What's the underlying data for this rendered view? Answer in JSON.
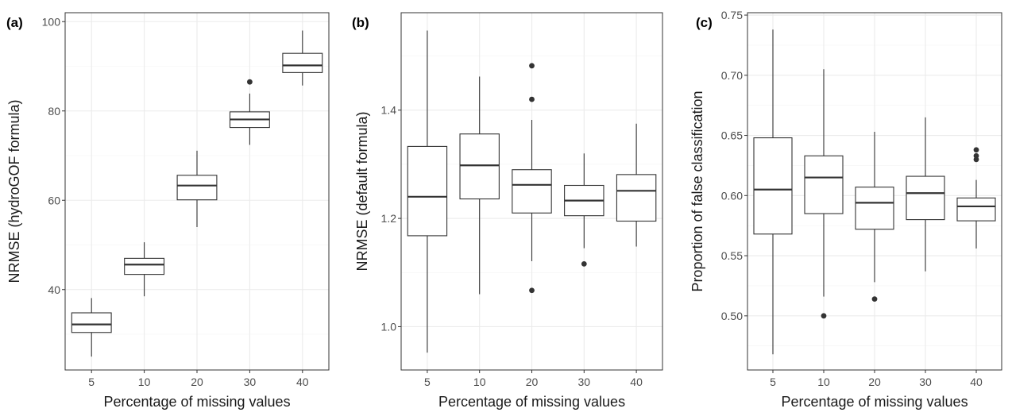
{
  "chart_data": [
    {
      "type": "box",
      "panel_label": "(a)",
      "title": "",
      "xlabel": "Percentage of missing values",
      "ylabel": "NRMSE (hydroGOF formula)",
      "categories": [
        "5",
        "10",
        "20",
        "30",
        "40"
      ],
      "ylim": [
        22,
        102
      ],
      "yticks": [
        40,
        60,
        80,
        100
      ],
      "ytick_labels": [
        "40",
        "60",
        "80",
        "100"
      ],
      "grid": true,
      "boxes": [
        {
          "category": "5",
          "min": 25.0,
          "q1": 30.4,
          "median": 32.2,
          "q3": 34.8,
          "max": 38.1,
          "outliers": []
        },
        {
          "category": "10",
          "min": 38.5,
          "q1": 43.4,
          "median": 45.6,
          "q3": 47.0,
          "max": 50.6,
          "outliers": []
        },
        {
          "category": "20",
          "min": 54.0,
          "q1": 60.1,
          "median": 63.3,
          "q3": 65.6,
          "max": 71.1,
          "outliers": []
        },
        {
          "category": "30",
          "min": 72.4,
          "q1": 76.3,
          "median": 78.1,
          "q3": 79.8,
          "max": 83.9,
          "outliers": [
            86.5
          ]
        },
        {
          "category": "40",
          "min": 85.7,
          "q1": 88.6,
          "median": 90.2,
          "q3": 92.9,
          "max": 98.0,
          "outliers": []
        }
      ]
    },
    {
      "type": "box",
      "panel_label": "(b)",
      "title": "",
      "xlabel": "Percentage of missing values",
      "ylabel": "NRMSE (default formula)",
      "categories": [
        "5",
        "10",
        "20",
        "30",
        "40"
      ],
      "ylim": [
        0.92,
        1.58
      ],
      "yticks": [
        1.0,
        1.2,
        1.4
      ],
      "ytick_labels": [
        "1.0",
        "1.2",
        "1.4"
      ],
      "grid": true,
      "boxes": [
        {
          "category": "5",
          "min": 0.952,
          "q1": 1.168,
          "median": 1.24,
          "q3": 1.333,
          "max": 1.547,
          "outliers": []
        },
        {
          "category": "10",
          "min": 1.06,
          "q1": 1.236,
          "median": 1.298,
          "q3": 1.356,
          "max": 1.462,
          "outliers": []
        },
        {
          "category": "20",
          "min": 1.121,
          "q1": 1.21,
          "median": 1.262,
          "q3": 1.29,
          "max": 1.382,
          "outliers": [
            1.067,
            1.42,
            1.482
          ]
        },
        {
          "category": "30",
          "min": 1.145,
          "q1": 1.205,
          "median": 1.233,
          "q3": 1.261,
          "max": 1.32,
          "outliers": [
            1.116
          ]
        },
        {
          "category": "40",
          "min": 1.148,
          "q1": 1.195,
          "median": 1.251,
          "q3": 1.281,
          "max": 1.375,
          "outliers": []
        }
      ]
    },
    {
      "type": "box",
      "panel_label": "(c)",
      "title": "",
      "xlabel": "Percentage of missing values",
      "ylabel": "Proportion of false classification",
      "categories": [
        "5",
        "10",
        "20",
        "30",
        "40"
      ],
      "ylim": [
        0.455,
        0.752
      ],
      "yticks": [
        0.5,
        0.55,
        0.6,
        0.65,
        0.7,
        0.75
      ],
      "ytick_labels": [
        "0.50",
        "0.55",
        "0.60",
        "0.65",
        "0.70",
        "0.75"
      ],
      "grid": true,
      "boxes": [
        {
          "category": "5",
          "min": 0.468,
          "q1": 0.568,
          "median": 0.605,
          "q3": 0.648,
          "max": 0.738,
          "outliers": []
        },
        {
          "category": "10",
          "min": 0.516,
          "q1": 0.585,
          "median": 0.615,
          "q3": 0.633,
          "max": 0.705,
          "outliers": [
            0.5
          ]
        },
        {
          "category": "20",
          "min": 0.528,
          "q1": 0.572,
          "median": 0.594,
          "q3": 0.607,
          "max": 0.653,
          "outliers": [
            0.514
          ]
        },
        {
          "category": "30",
          "min": 0.537,
          "q1": 0.58,
          "median": 0.602,
          "q3": 0.616,
          "max": 0.665,
          "outliers": []
        },
        {
          "category": "40",
          "min": 0.556,
          "q1": 0.579,
          "median": 0.591,
          "q3": 0.598,
          "max": 0.613,
          "outliers": [
            0.63,
            0.633,
            0.638
          ]
        }
      ]
    }
  ]
}
